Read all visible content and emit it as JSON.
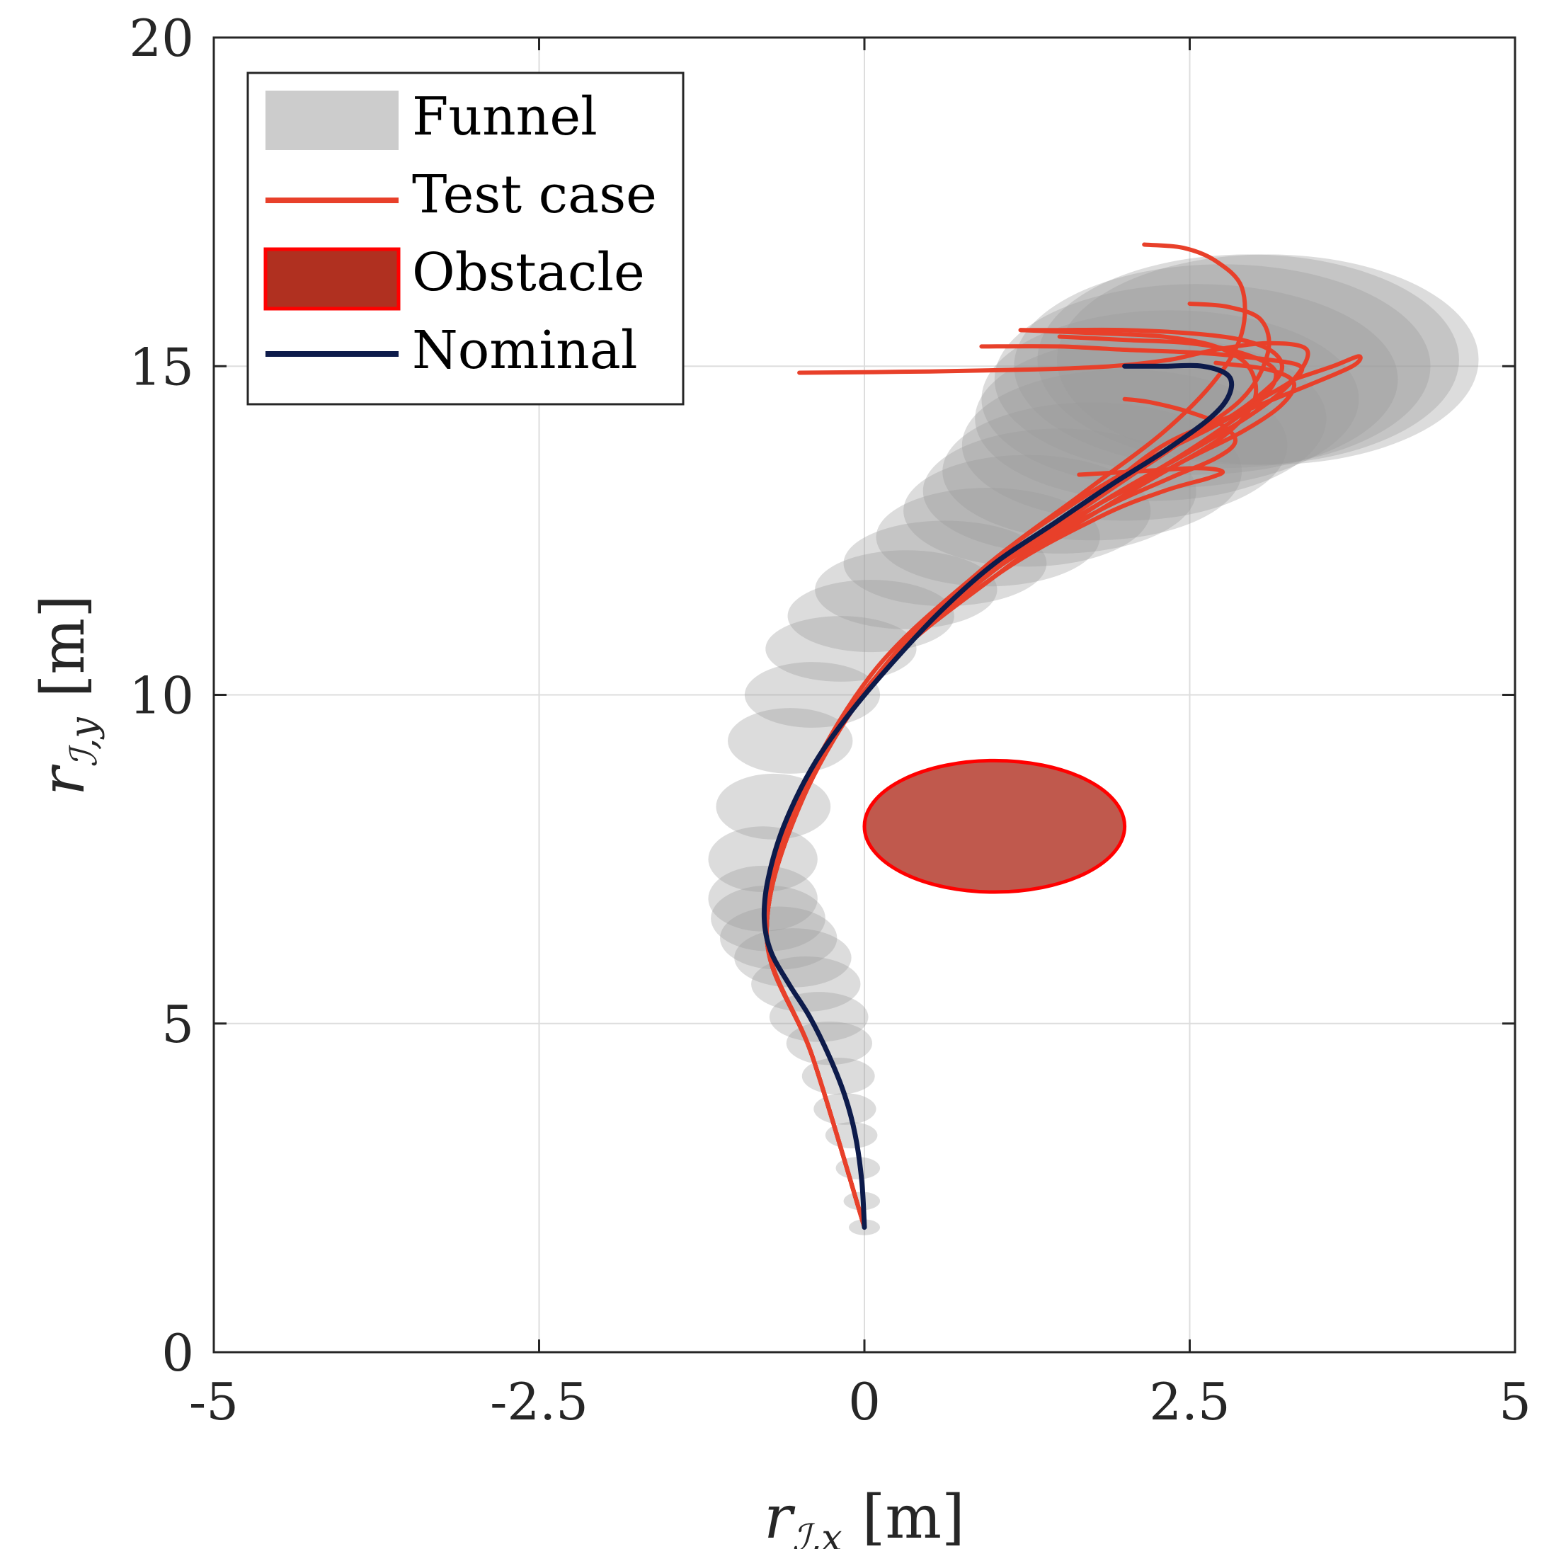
{
  "chart_data": {
    "type": "line",
    "xlabel": {
      "main": "r",
      "sub": "ℐ,x",
      "unit": "[m]"
    },
    "ylabel": {
      "main": "r",
      "sub": "ℐ,y",
      "unit": "[m]"
    },
    "xlim": [
      -5,
      5
    ],
    "ylim": [
      0,
      20
    ],
    "xticks": [
      -5,
      -2.5,
      0,
      2.5,
      5
    ],
    "xtick_labels": [
      "-5",
      "-2.5",
      "0",
      "2.5",
      "5"
    ],
    "yticks": [
      0,
      5,
      10,
      15,
      20
    ],
    "ytick_labels": [
      "0",
      "5",
      "10",
      "15",
      "20"
    ],
    "grid": true,
    "legend_position": "top-left",
    "legend": [
      {
        "label": "Funnel",
        "kind": "patch",
        "color": "#cccccc"
      },
      {
        "label": "Test case",
        "kind": "line",
        "color": "#e8402a"
      },
      {
        "label": "Obstacle",
        "kind": "patch",
        "color": "#b03020",
        "edge": "#ff0000"
      },
      {
        "label": "Nominal",
        "kind": "line",
        "color": "#0d1b4b"
      }
    ],
    "colors": {
      "funnel": "#9a9a9a",
      "test_case": "#e8402a",
      "obstacle_fill": "#b03020",
      "obstacle_edge": "#ff0000",
      "nominal": "#0d1b4b",
      "grid": "#dddddd",
      "axes": "#262626"
    },
    "obstacle": {
      "cx": 1.0,
      "cy": 8.0,
      "rx": 1.0,
      "ry": 1.0
    },
    "nominal": {
      "x": [
        0,
        -0.02,
        -0.07,
        -0.15,
        -0.27,
        -0.42,
        -0.58,
        -0.72,
        -0.77,
        -0.74,
        -0.62,
        -0.4,
        -0.12,
        0.22,
        0.6,
        1.0,
        1.45,
        1.9,
        2.3,
        2.65,
        2.8,
        2.8,
        2.6,
        2.3,
        2.0
      ],
      "y": [
        1.9,
        2.6,
        3.3,
        3.9,
        4.5,
        5.1,
        5.6,
        6.1,
        6.6,
        7.2,
        8.0,
        8.9,
        9.7,
        10.5,
        11.3,
        12.0,
        12.6,
        13.2,
        13.7,
        14.2,
        14.55,
        14.85,
        15.0,
        15.0,
        15.0
      ]
    },
    "funnel": {
      "x": [
        0,
        -0.02,
        -0.05,
        -0.1,
        -0.15,
        -0.2,
        -0.27,
        -0.35,
        -0.45,
        -0.55,
        -0.66,
        -0.74,
        -0.78,
        -0.78,
        -0.7,
        -0.57,
        -0.4,
        -0.18,
        0.05,
        0.32,
        0.62,
        0.95,
        1.25,
        1.5,
        1.75,
        2.0,
        2.2,
        2.35,
        2.55,
        2.75,
        2.95,
        3.1
      ],
      "y": [
        1.9,
        2.3,
        2.8,
        3.3,
        3.7,
        4.2,
        4.7,
        5.1,
        5.6,
        6.0,
        6.3,
        6.6,
        6.9,
        7.5,
        8.3,
        9.3,
        10.0,
        10.7,
        11.2,
        11.6,
        12.0,
        12.4,
        12.8,
        13.1,
        13.4,
        13.8,
        14.2,
        14.5,
        14.8,
        15.0,
        15.1,
        15.1
      ],
      "rx": [
        0.12,
        0.14,
        0.17,
        0.2,
        0.24,
        0.28,
        0.33,
        0.38,
        0.42,
        0.45,
        0.45,
        0.44,
        0.42,
        0.42,
        0.44,
        0.48,
        0.52,
        0.58,
        0.64,
        0.7,
        0.78,
        0.86,
        0.95,
        1.05,
        1.15,
        1.25,
        1.35,
        1.45,
        1.55,
        1.6,
        1.62,
        1.62
      ],
      "ry": [
        0.12,
        0.14,
        0.17,
        0.2,
        0.24,
        0.28,
        0.33,
        0.38,
        0.42,
        0.45,
        0.48,
        0.5,
        0.5,
        0.5,
        0.5,
        0.5,
        0.5,
        0.5,
        0.55,
        0.6,
        0.65,
        0.75,
        0.85,
        0.95,
        1.05,
        1.15,
        1.25,
        1.35,
        1.45,
        1.55,
        1.6,
        1.6
      ]
    },
    "test_cases": [
      {
        "x": [
          0,
          -0.4,
          -0.75,
          -0.55,
          0.05,
          0.9,
          1.7,
          2.3,
          2.7,
          2.9,
          2.9,
          2.7,
          2.45,
          2.15
        ],
        "y": [
          1.9,
          4.5,
          6.3,
          8.2,
          10.3,
          11.9,
          13.1,
          14.0,
          14.8,
          15.5,
          16.2,
          16.6,
          16.8,
          16.85
        ]
      },
      {
        "x": [
          0,
          -0.4,
          -0.75,
          -0.5,
          0.1,
          1.0,
          1.8,
          2.4,
          2.9,
          3.1,
          3.05,
          2.8,
          2.5
        ],
        "y": [
          1.9,
          4.5,
          6.3,
          8.3,
          10.3,
          11.9,
          13.0,
          13.8,
          14.5,
          15.2,
          15.7,
          15.9,
          15.95
        ]
      },
      {
        "x": [
          0,
          -0.4,
          -0.75,
          -0.5,
          0.1,
          1.0,
          1.8,
          2.5,
          3.0,
          3.3,
          3.4,
          3.1,
          2.7,
          2.35,
          1.9,
          1.3,
          0.5,
          -0.5
        ],
        "y": [
          1.9,
          4.5,
          6.3,
          8.3,
          10.3,
          11.8,
          12.9,
          13.7,
          14.3,
          14.8,
          15.25,
          15.35,
          15.25,
          15.1,
          15.0,
          14.95,
          14.92,
          14.9
        ]
      },
      {
        "x": [
          0,
          -0.4,
          -0.75,
          -0.5,
          0.1,
          0.95,
          1.7,
          2.3,
          2.9,
          3.4,
          3.75,
          3.8,
          3.6,
          3.3
        ],
        "y": [
          1.9,
          4.5,
          6.3,
          8.3,
          10.3,
          11.9,
          12.9,
          13.8,
          14.3,
          14.7,
          15.0,
          15.15,
          15.0,
          14.8
        ]
      },
      {
        "x": [
          0,
          -0.4,
          -0.75,
          -0.5,
          0.1,
          0.9,
          1.6,
          2.2,
          2.7,
          3.05,
          3.3,
          3.35,
          3.1,
          2.6,
          2.0,
          1.5,
          0.9
        ],
        "y": [
          1.9,
          4.5,
          6.3,
          8.3,
          10.3,
          11.9,
          12.9,
          13.6,
          14.1,
          14.5,
          14.8,
          15.0,
          15.1,
          15.2,
          15.25,
          15.3,
          15.3
        ]
      },
      {
        "x": [
          0,
          -0.4,
          -0.75,
          -0.5,
          0.1,
          1.0,
          1.8,
          2.4,
          2.8,
          3.0,
          2.95,
          2.7,
          2.3,
          1.8,
          1.2
        ],
        "y": [
          1.9,
          4.5,
          6.3,
          8.3,
          10.3,
          11.9,
          12.9,
          13.5,
          14.0,
          14.5,
          15.0,
          15.3,
          15.45,
          15.5,
          15.55
        ]
      },
      {
        "x": [
          0,
          -0.4,
          -0.75,
          -0.5,
          0.1,
          1.0,
          1.8,
          2.4,
          2.9,
          3.2,
          3.3,
          3.1,
          2.7
        ],
        "y": [
          1.9,
          4.5,
          6.3,
          8.3,
          10.3,
          11.8,
          12.8,
          13.5,
          14.0,
          14.4,
          14.75,
          14.95,
          15.05
        ]
      },
      {
        "x": [
          0,
          -0.4,
          -0.75,
          -0.5,
          0.1,
          0.9,
          1.6,
          2.2,
          2.7,
          3.0,
          3.2,
          3.15,
          2.9,
          2.5,
          2.0,
          1.5,
          1.2
        ],
        "y": [
          1.9,
          4.5,
          6.3,
          8.3,
          10.3,
          11.9,
          12.9,
          13.6,
          14.1,
          14.5,
          14.9,
          15.2,
          15.4,
          15.5,
          15.55,
          15.55,
          15.55
        ]
      },
      {
        "x": [
          0,
          -0.4,
          -0.75,
          -0.5,
          0.1,
          1.0,
          1.8,
          2.35,
          2.7,
          2.85,
          2.75,
          2.5,
          2.2,
          2.0
        ],
        "y": [
          1.9,
          4.5,
          6.3,
          8.3,
          10.3,
          11.9,
          12.8,
          13.3,
          13.6,
          13.85,
          14.1,
          14.3,
          14.45,
          14.5
        ]
      },
      {
        "x": [
          0,
          -0.4,
          -0.75,
          -0.5,
          0.1,
          1.0,
          1.8,
          2.3,
          2.65,
          2.75,
          2.55,
          2.1,
          1.65
        ],
        "y": [
          1.9,
          4.5,
          6.3,
          8.3,
          10.3,
          11.8,
          12.7,
          13.1,
          13.3,
          13.4,
          13.45,
          13.4,
          13.35
        ]
      },
      {
        "x": [
          0,
          -0.4,
          -0.75,
          -0.5,
          0.1,
          1.0,
          1.8,
          2.4,
          2.85,
          3.1,
          3.15,
          2.9,
          2.5,
          2.0,
          1.5
        ],
        "y": [
          1.9,
          4.5,
          6.3,
          8.3,
          10.3,
          11.9,
          12.9,
          13.6,
          14.2,
          14.6,
          14.95,
          15.2,
          15.35,
          15.4,
          15.45
        ]
      }
    ]
  }
}
